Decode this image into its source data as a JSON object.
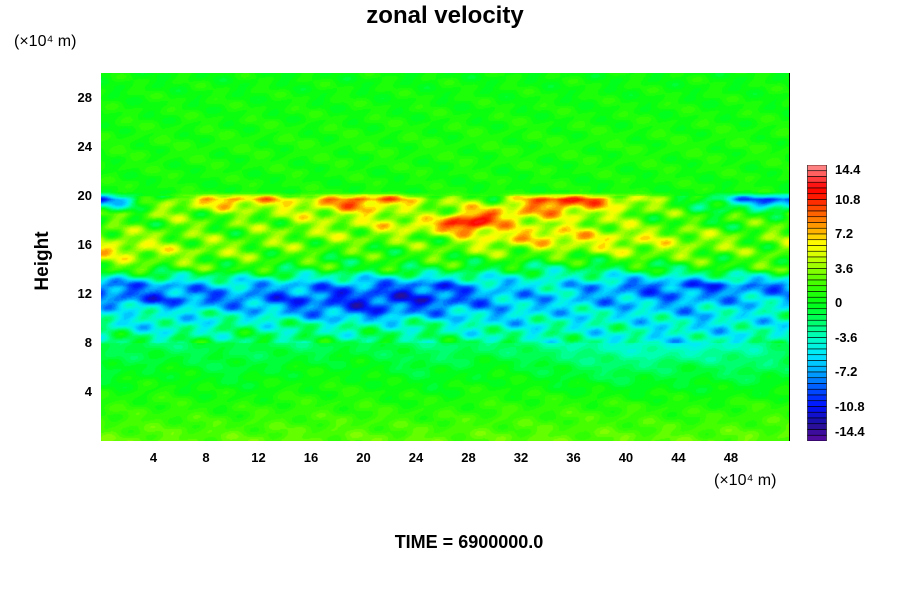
{
  "chart_data": {
    "type": "heatmap",
    "title": "zonal velocity",
    "xlabel": "",
    "ylabel": "Height",
    "x_unit": "(×10⁴ m)",
    "y_unit": "(×10⁴ m)",
    "xlim": [
      0,
      52.5
    ],
    "ylim": [
      0,
      30
    ],
    "x_ticks": [
      "4",
      "8",
      "12",
      "16",
      "20",
      "24",
      "28",
      "32",
      "36",
      "40",
      "44",
      "48"
    ],
    "y_ticks": [
      "4",
      "8",
      "12",
      "16",
      "20",
      "24",
      "28"
    ],
    "colorbar": {
      "range": [
        -14.4,
        14.4
      ],
      "step": 0.6,
      "tick_labels": [
        "14.4",
        "10.8",
        "7.2",
        "3.6",
        "0",
        "-3.6",
        "-7.2",
        "-10.8",
        "-14.4"
      ],
      "colors": [
        [
          -14.4,
          "#5a0aa0"
        ],
        [
          -12.6,
          "#20109a"
        ],
        [
          -10.8,
          "#0010ff"
        ],
        [
          -9.0,
          "#0050ff"
        ],
        [
          -7.2,
          "#00a8ff"
        ],
        [
          -5.4,
          "#00e8ff"
        ],
        [
          -3.6,
          "#00ffc0"
        ],
        [
          -1.8,
          "#00ff60"
        ],
        [
          0,
          "#00ff10"
        ],
        [
          2.0,
          "#40ff00"
        ],
        [
          3.6,
          "#90ff00"
        ],
        [
          5.4,
          "#e8ff00"
        ],
        [
          6.2,
          "#ffff00"
        ],
        [
          7.2,
          "#ffc000"
        ],
        [
          9.0,
          "#ff7000"
        ],
        [
          10.8,
          "#ff2000"
        ],
        [
          12.0,
          "#ff0000"
        ],
        [
          13.2,
          "#ff5050"
        ],
        [
          14.4,
          "#ff9090"
        ]
      ]
    },
    "grid_x": [
      0,
      5,
      10,
      15,
      20,
      25,
      30,
      35,
      40,
      45,
      50,
      52.5
    ],
    "grid_y": [
      0,
      3,
      6,
      8,
      9.5,
      10.5,
      11.5,
      12.7,
      14,
      15.5,
      16.5,
      17.7,
      18.5,
      19.7,
      20.3,
      24,
      30
    ],
    "values": [
      [
        2.5,
        2.5,
        2.5,
        2.5,
        2.5,
        2.5,
        2.5,
        2.5,
        2.5,
        2.5,
        2.5,
        2.5
      ],
      [
        1.2,
        1.2,
        0.8,
        1.2,
        1.2,
        0.8,
        1.2,
        1.2,
        1.2,
        0.8,
        1.2,
        1.2
      ],
      [
        -1,
        0,
        -1,
        0,
        0,
        -1,
        0,
        -1,
        -2,
        -1,
        -2,
        -1
      ],
      [
        -1,
        -2,
        -1,
        -2,
        -1,
        -2,
        -2,
        -3,
        -4,
        -5,
        -3,
        -2
      ],
      [
        -4,
        -5,
        -3,
        -3,
        -4,
        -3,
        -5,
        -4,
        -4,
        -5,
        -5,
        -4
      ],
      [
        -4,
        -4,
        -5,
        -7,
        -9,
        -7,
        -6,
        -5,
        -5,
        -6,
        -4,
        -4
      ],
      [
        -8,
        -9,
        -8,
        -9,
        -10,
        -10,
        -7,
        -6,
        -7,
        -7,
        -6,
        -6
      ],
      [
        -9,
        -7,
        -6,
        -7,
        -8,
        -9,
        -6,
        -5,
        -8,
        -9,
        -8,
        -8
      ],
      [
        2,
        1,
        1,
        0,
        0,
        0,
        -1,
        -2,
        -1,
        0,
        1,
        1
      ],
      [
        6,
        4,
        3,
        2,
        1,
        2,
        3,
        3,
        4,
        3,
        2,
        3
      ],
      [
        4,
        3,
        2,
        3,
        3,
        2,
        6,
        7,
        5,
        4,
        2,
        3
      ],
      [
        1,
        2,
        2,
        3,
        4,
        7,
        6,
        4,
        3,
        1,
        1,
        2
      ],
      [
        1,
        3,
        2,
        4,
        5,
        2,
        8,
        6,
        3,
        1,
        1,
        2
      ],
      [
        -10,
        3,
        9,
        5,
        11,
        4,
        2,
        12,
        6,
        0,
        -9,
        -11
      ],
      [
        0.5,
        0.5,
        0.5,
        0.5,
        0.5,
        0.5,
        0.5,
        0.5,
        0.5,
        0.5,
        0.5,
        0.5
      ],
      [
        0.8,
        0.8,
        0.8,
        0.8,
        0.8,
        0.8,
        0.8,
        0.8,
        0.8,
        0.8,
        0.8,
        0.8
      ],
      [
        0.3,
        0.3,
        0.3,
        0.3,
        0.3,
        0.3,
        0.3,
        0.3,
        0.3,
        0.3,
        0.3,
        0.3
      ]
    ],
    "annotations": [
      {
        "text": "TIME = 6900000.0"
      }
    ],
    "red_blob": {
      "x": 28,
      "y": 17.8,
      "value": 12.5
    }
  }
}
